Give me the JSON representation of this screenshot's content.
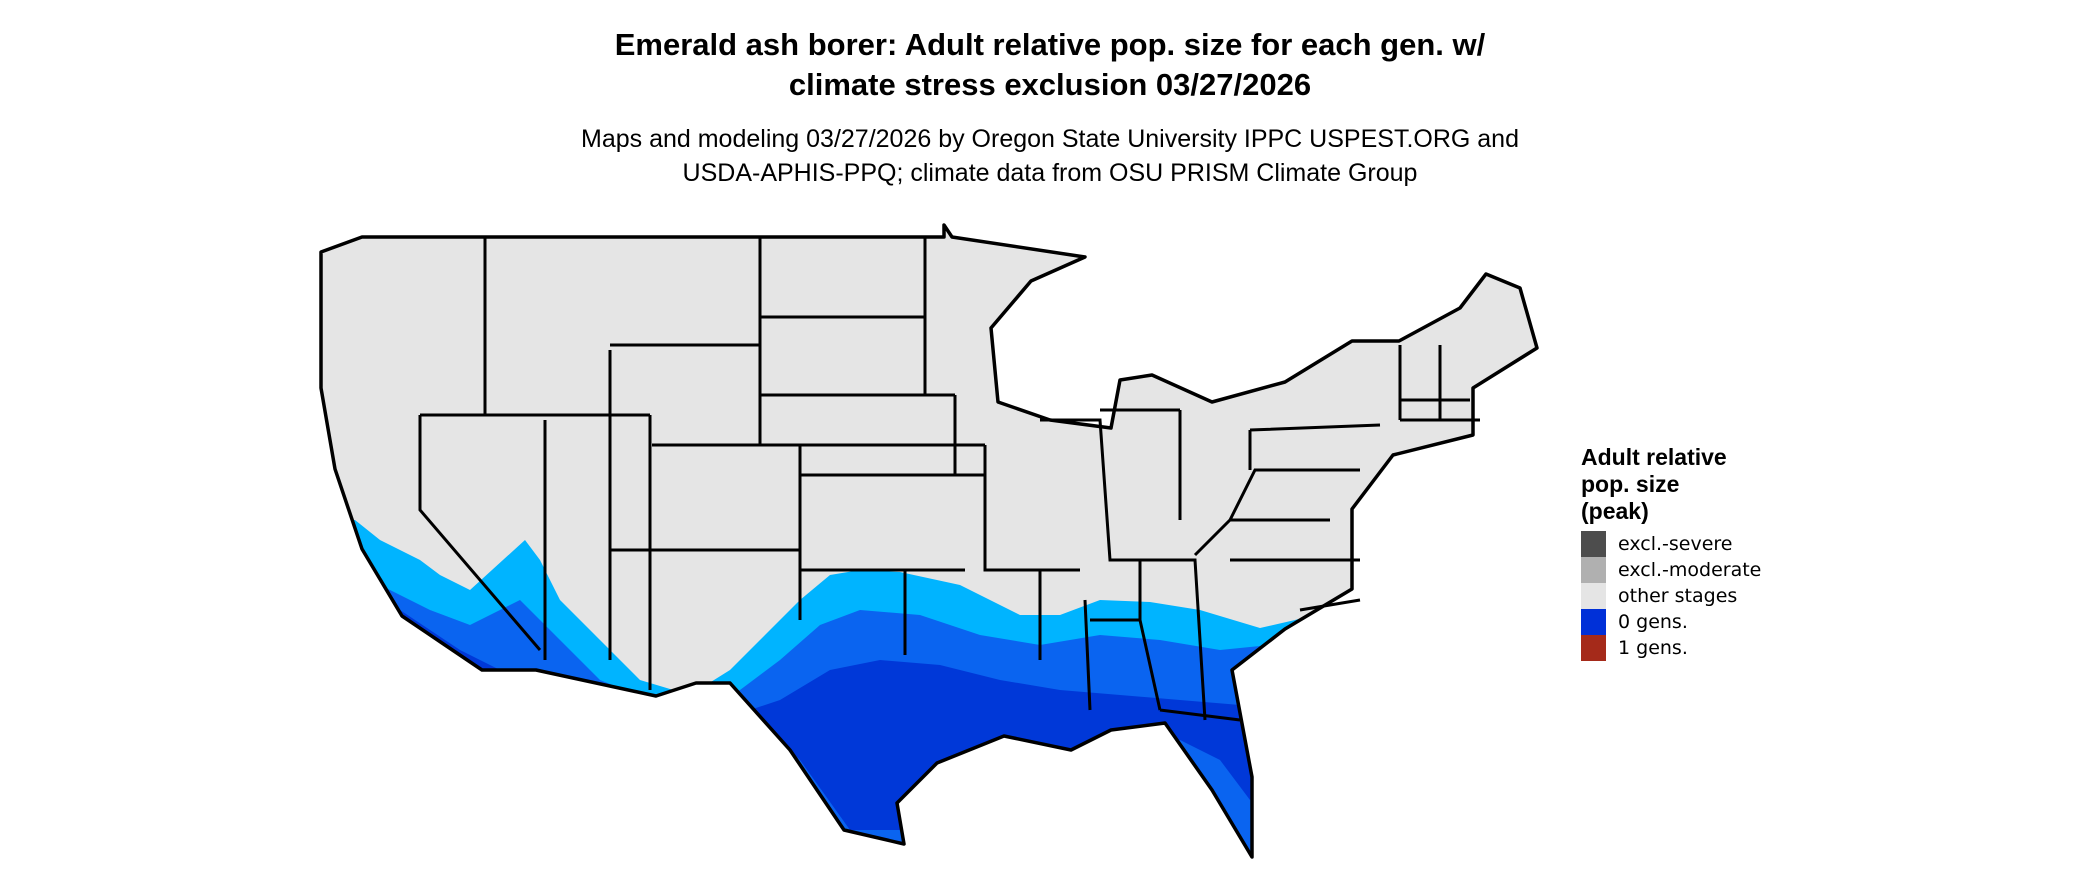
{
  "title": {
    "line1": "Emerald ash borer: Adult relative pop. size for each gen. w/",
    "line2": "climate stress exclusion 03/27/2026"
  },
  "subtitle": {
    "line1": "Maps and modeling 03/27/2026 by Oregon State University IPPC USPEST.ORG and",
    "line2": "USDA-APHIS-PPQ; climate data from OSU PRISM Climate Group"
  },
  "legend": {
    "title_lines": [
      "Adult relative",
      "pop. size",
      "(peak)"
    ],
    "items": [
      {
        "label": "excl.-severe",
        "color": "#4d4d4d"
      },
      {
        "label": "excl.-moderate",
        "color": "#b0b0b0"
      },
      {
        "label": "other stages",
        "color": "#e5e5e5"
      },
      {
        "label": "0 gens.",
        "color": "#0030d8"
      },
      {
        "label": "1 gens.",
        "color": "#a52a1a"
      }
    ]
  },
  "map_colors": {
    "land": "#e5e5e5",
    "border": "#000000",
    "pop_light": "#00b4ff",
    "pop_mid": "#0a64f0",
    "pop_dark": "#0038d8"
  }
}
